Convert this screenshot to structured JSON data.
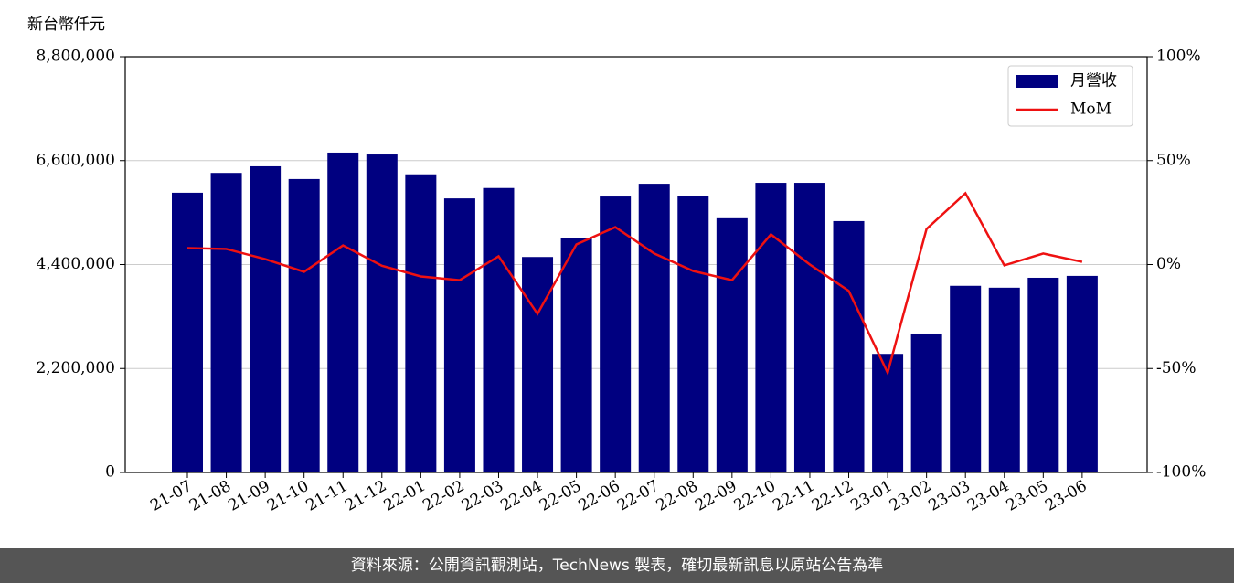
{
  "chart_data": {
    "type": "bar_line",
    "ylabel": "新台幣仟元",
    "categories": [
      "21-07",
      "21-08",
      "21-09",
      "21-10",
      "21-11",
      "21-12",
      "22-01",
      "22-02",
      "22-03",
      "22-04",
      "22-05",
      "22-06",
      "22-07",
      "22-08",
      "22-09",
      "22-10",
      "22-11",
      "22-12",
      "23-01",
      "23-02",
      "23-03",
      "23-04",
      "23-05",
      "23-06"
    ],
    "series": [
      {
        "name": "月營收",
        "color": "#000080",
        "axis": "y",
        "values": [
          5920000,
          6340000,
          6480000,
          6210000,
          6770000,
          6730000,
          6310000,
          5800000,
          6020000,
          4560000,
          4970000,
          5840000,
          6110000,
          5860000,
          5380000,
          6130000,
          6130000,
          5320000,
          2510000,
          2940000,
          3950000,
          3910000,
          4120000,
          4160000
        ]
      },
      {
        "name": "MoM",
        "color": "#ee1111",
        "axis": "y2",
        "values": [
          7.9,
          7.5,
          2.6,
          -3.5,
          9.2,
          -0.6,
          -5.7,
          -7.5,
          4,
          -23.7,
          9.7,
          18,
          5.3,
          -3.1,
          -7.5,
          14.5,
          0,
          -12.7,
          -52,
          17.1,
          34.3,
          -0.4,
          5.3,
          1.3
        ]
      }
    ],
    "ylim": [
      0,
      8800000
    ],
    "yticks": [
      {
        "value": 0,
        "label": "0"
      },
      {
        "value": 2200000,
        "label": "2,200,000"
      },
      {
        "value": 4400000,
        "label": "4,400,000"
      },
      {
        "value": 6600000,
        "label": "6,600,000"
      },
      {
        "value": 8800000,
        "label": "8,800,000"
      }
    ],
    "y2lim": [
      -100,
      100
    ],
    "y2ticks": [
      {
        "value": -100,
        "label": "-100%"
      },
      {
        "value": -50,
        "label": "-50%"
      },
      {
        "value": 0,
        "label": "0%"
      },
      {
        "value": 50,
        "label": "50%"
      },
      {
        "value": 100,
        "label": "100%"
      }
    ],
    "grid": true,
    "legend": "upper right",
    "source": "資料來源：公開資訊觀測站，TechNews 製表，確切最新訊息以原站公告為準"
  }
}
